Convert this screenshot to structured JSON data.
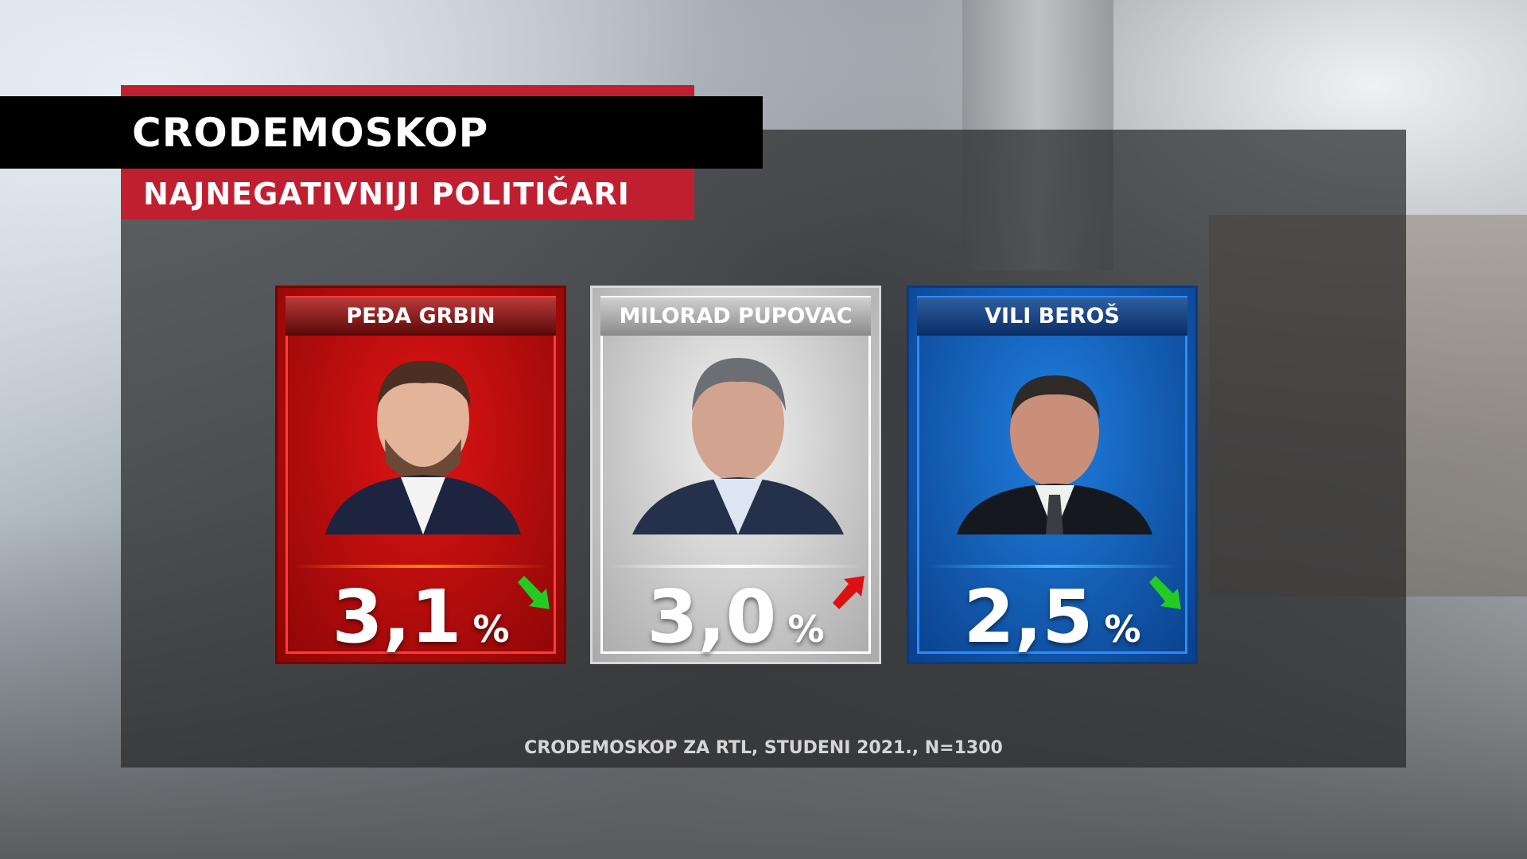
{
  "header": {
    "title": "CRODEMOSKOP",
    "subtitle": "NAJNEGATIVNIJI POLITIČARI"
  },
  "cards": [
    {
      "name": "PEĐA GRBIN",
      "value": "3,1",
      "unit": "%",
      "trend": "down",
      "trend_icon": "arrow-down-right-icon",
      "trend_color": "#22cc22",
      "theme": "#c81010"
    },
    {
      "name": "MILORAD PUPOVAC",
      "value": "3,0",
      "unit": "%",
      "trend": "up",
      "trend_icon": "arrow-up-right-icon",
      "trend_color": "#dd1111",
      "theme": "#c8c8c8"
    },
    {
      "name": "VILI BEROŠ",
      "value": "2,5",
      "unit": "%",
      "trend": "down",
      "trend_icon": "arrow-down-right-icon",
      "trend_color": "#22cc22",
      "theme": "#1565c0"
    }
  ],
  "footer": {
    "source": "CRODEMOSKOP ZA RTL, STUDENI 2021., N=1300"
  },
  "colors": {
    "accent_red": "#c01f30",
    "title_bar": "#000000"
  }
}
